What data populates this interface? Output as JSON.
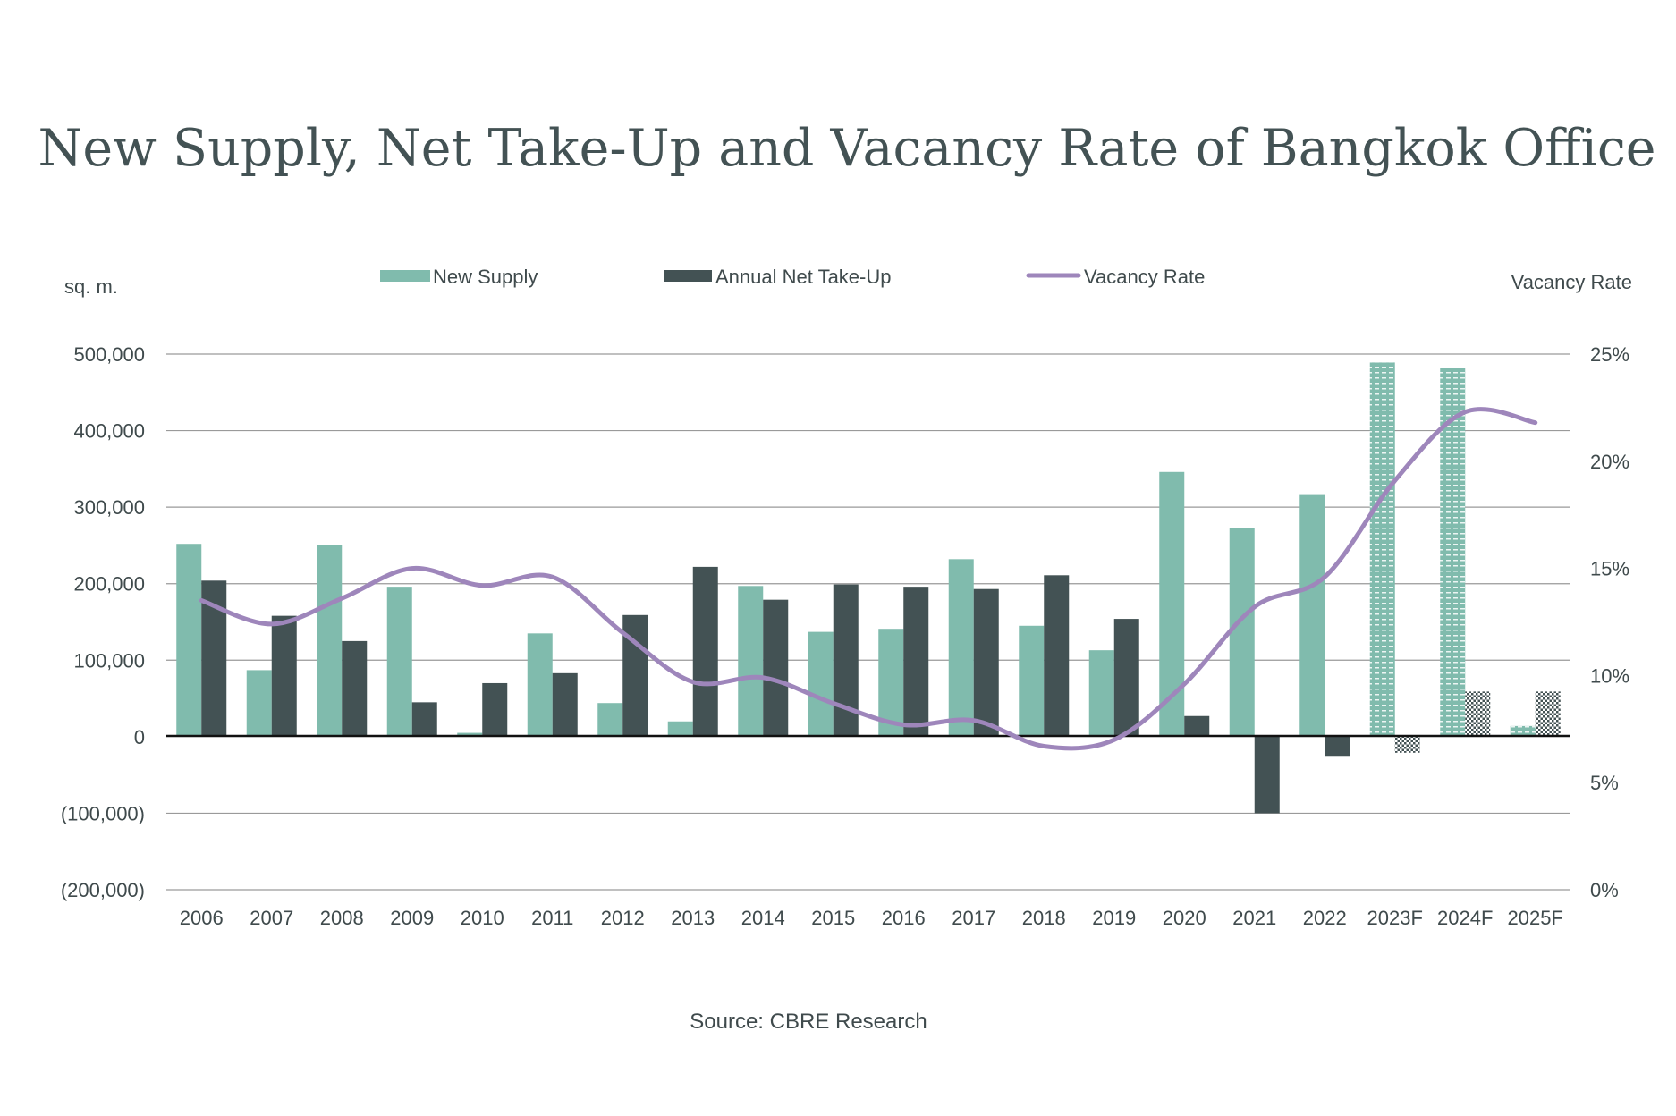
{
  "chart_data": {
    "type": "bar",
    "title": "New Supply, Net Take-Up and Vacancy Rate of Bangkok Office",
    "ylabel": "sq. m.",
    "y2label": "Vacancy Rate",
    "source": "Source: CBRE Research",
    "ylim": [
      -200000,
      500000
    ],
    "y2lim": [
      0,
      25
    ],
    "yticks": [
      "(200,000)",
      "(100,000)",
      "0",
      "100,000",
      "200,000",
      "300,000",
      "400,000",
      "500,000"
    ],
    "y2ticks": [
      "0%",
      "5%",
      "10%",
      "15%",
      "20%",
      "25%"
    ],
    "legend_position": "top",
    "categories": [
      "2006",
      "2007",
      "2008",
      "2009",
      "2010",
      "2011",
      "2012",
      "2013",
      "2014",
      "2015",
      "2016",
      "2017",
      "2018",
      "2019",
      "2020",
      "2021",
      "2022",
      "2023F",
      "2024F",
      "2025F"
    ],
    "forecast_from_index": 17,
    "series": [
      {
        "name": "New Supply",
        "type": "bar",
        "color": "#80bbad",
        "values": [
          252000,
          87000,
          251000,
          196000,
          5000,
          135000,
          44000,
          20000,
          197000,
          137000,
          141000,
          232000,
          145000,
          113000,
          346000,
          273000,
          317000,
          489000,
          482000,
          14000
        ]
      },
      {
        "name": "Annual Net Take-Up",
        "type": "bar",
        "color": "#435254",
        "values": [
          204000,
          158000,
          125000,
          45000,
          70000,
          83000,
          159000,
          222000,
          179000,
          199000,
          196000,
          193000,
          211000,
          154000,
          27000,
          -100000,
          -25000,
          -21000,
          59000,
          59000
        ]
      },
      {
        "name": "Vacancy Rate",
        "type": "line",
        "axis": "right",
        "color": "#9e86bb",
        "values": [
          13.5,
          12.4,
          13.6,
          15.0,
          14.2,
          14.6,
          12.0,
          9.7,
          9.9,
          8.7,
          7.7,
          7.9,
          6.7,
          7.0,
          9.6,
          13.2,
          14.6,
          19.1,
          22.3,
          21.8
        ]
      }
    ]
  }
}
